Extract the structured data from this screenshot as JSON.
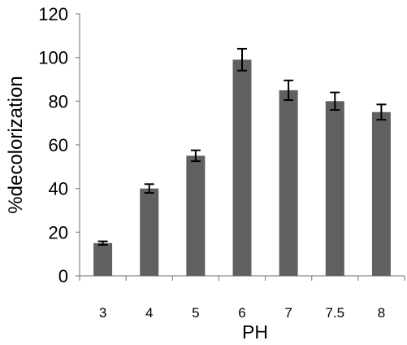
{
  "chart_data": {
    "type": "bar",
    "categories": [
      "3",
      "4",
      "5",
      "6",
      "7",
      "7.5",
      "8"
    ],
    "values": [
      15,
      40,
      55,
      99,
      85,
      80,
      75
    ],
    "error": [
      0.8,
      2.0,
      2.5,
      5.0,
      4.5,
      4.0,
      3.5
    ],
    "xlabel": "PH",
    "ylabel": "%decolorization",
    "ylim": [
      0,
      120
    ],
    "yticks": [
      "0",
      "20",
      "40",
      "60",
      "80",
      "100",
      "120"
    ],
    "grid": false,
    "bar_color": "#606060",
    "axis_color": "#868686"
  }
}
